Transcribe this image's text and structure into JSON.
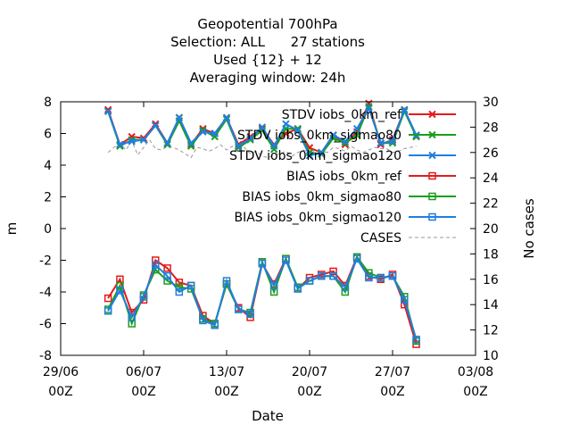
{
  "chart_data": {
    "type": "line",
    "title_lines": [
      "Geopotential 700hPa",
      "Selection: ALL      27 stations",
      "Used {12} + 12",
      "Averaging window: 24h"
    ],
    "xlabel": "Date",
    "ylabel": "m",
    "y2label": "No cases",
    "xlim": [
      0,
      35
    ],
    "ylim": [
      -8,
      8
    ],
    "y2lim": [
      10,
      30
    ],
    "x_ticks": [
      {
        "x": 0,
        "line1": "29/06",
        "line2": "00Z"
      },
      {
        "x": 7,
        "line1": "06/07",
        "line2": "00Z"
      },
      {
        "x": 14,
        "line1": "13/07",
        "line2": "00Z"
      },
      {
        "x": 21,
        "line1": "20/07",
        "line2": "00Z"
      },
      {
        "x": 28,
        "line1": "27/07",
        "line2": "00Z"
      },
      {
        "x": 35,
        "line1": "03/08",
        "line2": "00Z"
      }
    ],
    "y_ticks": [
      -8,
      -6,
      -4,
      -2,
      0,
      2,
      4,
      6,
      8
    ],
    "y2_ticks": [
      10,
      12,
      14,
      16,
      18,
      20,
      22,
      24,
      26,
      28,
      30
    ],
    "x": [
      4,
      5,
      6,
      7,
      8,
      9,
      10,
      11,
      12,
      13,
      14,
      15,
      16,
      17,
      18,
      19,
      20,
      21,
      22,
      23,
      24,
      25,
      26,
      27,
      28,
      29,
      30
    ],
    "grid": false,
    "legend_position": "top-right",
    "series": [
      {
        "name": "STDV iobs_0km_ref",
        "axis": "y",
        "color": "#e41a1c",
        "marker": "x",
        "values": [
          7.5,
          5.3,
          5.8,
          5.7,
          6.6,
          5.4,
          7.0,
          5.3,
          6.3,
          6.0,
          7.0,
          5.3,
          5.8,
          6.3,
          5.3,
          6.0,
          6.3,
          5.1,
          4.8,
          5.9,
          5.3,
          6.1,
          7.9,
          5.3,
          5.6,
          7.5,
          5.8
        ]
      },
      {
        "name": "STDV iobs_0km_sigmao80",
        "axis": "y",
        "color": "#1a9e1a",
        "marker": "x",
        "values": [
          7.4,
          5.2,
          5.6,
          5.6,
          6.5,
          5.3,
          6.8,
          5.2,
          6.2,
          5.8,
          6.9,
          5.1,
          5.6,
          6.2,
          5.0,
          6.3,
          6.3,
          4.8,
          4.7,
          5.7,
          5.4,
          5.9,
          7.7,
          5.4,
          5.4,
          7.4,
          5.8
        ]
      },
      {
        "name": "STDV iobs_0km_sigmao120",
        "axis": "y",
        "color": "#1f7fe0",
        "marker": "x",
        "values": [
          7.4,
          5.3,
          5.5,
          5.6,
          6.5,
          5.4,
          7.0,
          5.4,
          6.1,
          6.0,
          7.0,
          5.2,
          5.7,
          6.4,
          5.2,
          6.6,
          6.2,
          4.6,
          4.8,
          5.9,
          5.5,
          6.3,
          7.6,
          5.4,
          5.5,
          7.5,
          5.9
        ]
      },
      {
        "name": "BIAS iobs_0km_ref",
        "axis": "y",
        "color": "#e41a1c",
        "marker": "square",
        "values": [
          -4.4,
          -3.2,
          -5.3,
          -4.5,
          -2.0,
          -2.5,
          -3.4,
          -3.6,
          -5.5,
          -6.0,
          -3.5,
          -5.0,
          -5.6,
          -2.2,
          -3.5,
          -1.9,
          -3.8,
          -3.1,
          -2.9,
          -2.7,
          -3.6,
          -1.8,
          -3.0,
          -3.2,
          -2.9,
          -4.8,
          -7.3
        ]
      },
      {
        "name": "BIAS iobs_0km_sigmao80",
        "axis": "y",
        "color": "#1a9e1a",
        "marker": "square",
        "values": [
          -5.1,
          -3.6,
          -6.0,
          -4.2,
          -2.6,
          -3.3,
          -3.7,
          -3.8,
          -5.7,
          -6.0,
          -3.5,
          -5.1,
          -5.3,
          -2.1,
          -4.0,
          -1.9,
          -3.7,
          -3.3,
          -3.0,
          -3.0,
          -4.0,
          -1.8,
          -2.8,
          -3.1,
          -3.0,
          -4.3,
          -7.1
        ]
      },
      {
        "name": "BIAS iobs_0km_sigmao120",
        "axis": "y",
        "color": "#1f7fe0",
        "marker": "square",
        "values": [
          -5.2,
          -3.9,
          -5.6,
          -4.3,
          -2.3,
          -3.0,
          -4.0,
          -3.6,
          -5.8,
          -6.1,
          -3.3,
          -5.1,
          -5.4,
          -2.2,
          -3.6,
          -2.0,
          -3.8,
          -3.3,
          -3.0,
          -3.0,
          -3.7,
          -1.9,
          -3.1,
          -3.1,
          -3.0,
          -4.5,
          -7.0
        ]
      },
      {
        "name": "CASES",
        "axis": "y2",
        "color": "#999999",
        "dash": "4,3",
        "x": [
          4,
          4.5,
          5,
          5.5,
          6,
          6.5,
          7,
          7.5,
          8,
          8.5,
          9,
          9.5,
          10,
          10.5,
          11,
          11.5,
          12,
          12.5,
          13,
          13.5,
          14,
          14.5,
          15,
          15.5,
          16,
          16.5,
          17,
          17.5,
          18,
          18.5,
          19,
          19.5,
          20,
          20.5,
          21,
          21.5,
          22,
          22.5,
          23,
          23.5,
          24,
          24.5,
          25,
          25.5,
          26,
          26.5,
          27,
          27.5,
          28,
          28.5,
          29,
          29.5,
          30
        ],
        "values": [
          26.0,
          26.4,
          26.7,
          26.2,
          26.9,
          25.8,
          26.4,
          27.0,
          26.3,
          26.2,
          26.5,
          26.4,
          26.2,
          25.9,
          25.6,
          26.4,
          26.3,
          26.1,
          26.3,
          26.6,
          26.2,
          26.5,
          26.0,
          26.4,
          25.9,
          26.1,
          25.7,
          25.6,
          25.8,
          25.9,
          26.1,
          25.7,
          26.0,
          26.2,
          25.9,
          26.2,
          26.1,
          26.0,
          26.4,
          26.3,
          26.1,
          26.5,
          26.2,
          26.0,
          26.2,
          26.4,
          26.3,
          26.3,
          26.0,
          26.1,
          26.3,
          26.4,
          26.5
        ]
      }
    ]
  }
}
